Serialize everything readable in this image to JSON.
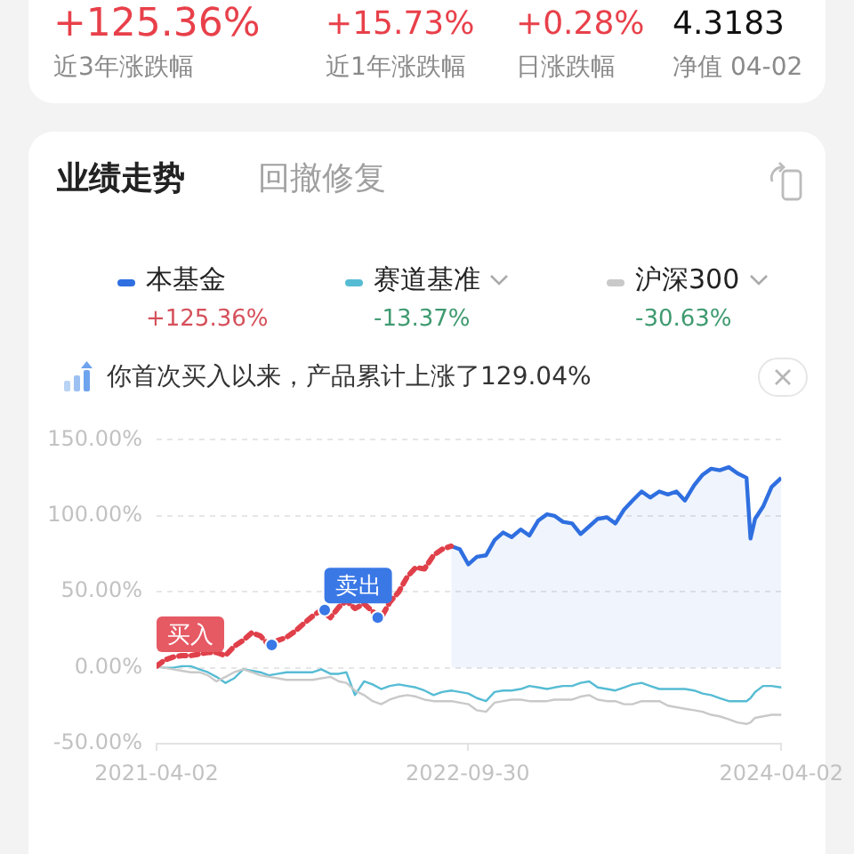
{
  "chart_data": {
    "type": "line",
    "title": "业绩走势",
    "annotations": [
      "+125.36%",
      "近3年涨跌幅",
      "+15.73%",
      "近1年涨跌幅",
      "+0.28%",
      "日涨跌幅",
      "4.3183",
      "净值 04-02",
      "回撤修复",
      "+125.36%",
      "-13.37%",
      "-30.63%",
      "你首次买入以来，产品累计上涨了129.04%",
      {
        "text": "买入",
        "x": "2021-04-02",
        "y": 1
      },
      {
        "text": "卖出",
        "x": "2022-04-25",
        "y": 33
      }
    ],
    "x": [
      "2021-04-02",
      "2021-04-16",
      "2021-05-01",
      "2021-05-16",
      "2021-06-01",
      "2021-06-16",
      "2021-07-01",
      "2021-07-16",
      "2021-08-01",
      "2021-08-16",
      "2021-09-01",
      "2021-09-16",
      "2021-10-01",
      "2021-10-16",
      "2021-11-01",
      "2021-11-16",
      "2021-12-01",
      "2021-12-16",
      "2022-01-01",
      "2022-01-16",
      "2022-02-01",
      "2022-02-16",
      "2022-03-01",
      "2022-03-16",
      "2022-04-01",
      "2022-04-16",
      "2022-05-01",
      "2022-05-16",
      "2022-06-01",
      "2022-06-16",
      "2022-07-01",
      "2022-07-16",
      "2022-08-01",
      "2022-08-16",
      "2022-09-01",
      "2022-09-16",
      "2022-10-01",
      "2022-10-16",
      "2022-11-01",
      "2022-11-16",
      "2022-12-01",
      "2022-12-16",
      "2023-01-01",
      "2023-01-16",
      "2023-02-01",
      "2023-02-16",
      "2023-03-01",
      "2023-03-16",
      "2023-04-01",
      "2023-04-16",
      "2023-05-01",
      "2023-05-16",
      "2023-06-01",
      "2023-06-16",
      "2023-07-01",
      "2023-07-16",
      "2023-08-01",
      "2023-08-16",
      "2023-09-01",
      "2023-09-16",
      "2023-10-01",
      "2023-10-16",
      "2023-11-01",
      "2023-11-16",
      "2023-12-01",
      "2023-12-16",
      "2024-01-01",
      "2024-01-16",
      "2024-02-01",
      "2024-02-08",
      "2024-02-16",
      "2024-03-01",
      "2024-03-16",
      "2024-04-02"
    ],
    "xlim": [
      "2021-04-02",
      "2024-04-02"
    ],
    "xticks": [
      "2021-04-02",
      "2022-09-30",
      "2024-04-02"
    ],
    "ylim": [
      -50,
      150
    ],
    "yticks": [
      {
        "value": -50,
        "label": "-50.00%"
      },
      {
        "value": 0,
        "label": "0.00%"
      },
      {
        "value": 50,
        "label": "50.00%"
      },
      {
        "value": 100,
        "label": "100.00%"
      },
      {
        "value": 150,
        "label": "150.00%"
      }
    ],
    "grid": "y",
    "legend": "top",
    "series": [
      {
        "name": "本基金",
        "type": "area",
        "color": "#2f6fe0",
        "values": [
          null,
          null,
          null,
          null,
          null,
          null,
          null,
          null,
          null,
          null,
          null,
          null,
          null,
          null,
          null,
          null,
          null,
          null,
          null,
          null,
          null,
          null,
          null,
          null,
          null,
          null,
          null,
          null,
          null,
          null,
          null,
          null,
          null,
          null,
          80,
          78,
          68,
          73,
          74,
          84,
          89,
          86,
          91,
          87,
          97,
          101,
          100,
          96,
          95,
          88,
          93,
          98,
          99,
          95,
          104,
          110,
          116,
          112,
          116,
          114,
          116,
          110,
          120,
          127,
          131,
          130,
          132,
          128,
          125,
          85,
          98,
          106,
          119,
          125
        ]
      },
      {
        "name": "赛道基准",
        "color": "#56bcd4",
        "values": [
          1,
          0,
          0,
          1,
          1,
          -1,
          -3,
          -6,
          -10,
          -7,
          -1,
          -2,
          -3,
          -5,
          -4,
          -3,
          -3,
          -3,
          -3,
          -1,
          -4,
          -4,
          -3,
          -18,
          -9,
          -11,
          -14,
          -12,
          -11,
          -12,
          -13,
          -15,
          -18,
          -16,
          -15,
          -16,
          -17,
          -20,
          -22,
          -16,
          -15,
          -15,
          -14,
          -12,
          -13,
          -14,
          -13,
          -12,
          -12,
          -10,
          -9,
          -13,
          -14,
          -15,
          -13,
          -11,
          -10,
          -12,
          -14,
          -14,
          -14,
          -14,
          -15,
          -17,
          -18,
          -20,
          -22,
          -22,
          -22,
          -20,
          -16,
          -12,
          -12,
          -13
        ]
      },
      {
        "name": "沪深300",
        "color": "#c9c9c9",
        "values": [
          1,
          0,
          -1,
          -2,
          -3,
          -3,
          -5,
          -9,
          -6,
          -3,
          -1,
          -3,
          -5,
          -6,
          -7,
          -8,
          -8,
          -8,
          -8,
          -7,
          -6,
          -9,
          -10,
          -15,
          -18,
          -22,
          -24,
          -21,
          -19,
          -18,
          -19,
          -21,
          -22,
          -22,
          -22,
          -23,
          -24,
          -28,
          -29,
          -23,
          -22,
          -21,
          -21,
          -22,
          -22,
          -22,
          -21,
          -21,
          -21,
          -19,
          -18,
          -21,
          -22,
          -22,
          -24,
          -24,
          -22,
          -22,
          -22,
          -25,
          -26,
          -27,
          -28,
          -29,
          -31,
          -32,
          -34,
          -36,
          -37,
          -36,
          -33,
          -32,
          -31,
          -31
        ]
      },
      {
        "type": "line",
        "color": "#e0404a",
        "line_style": "dashed",
        "values": [
          1,
          5,
          7,
          8,
          8,
          9,
          10,
          10,
          8,
          14,
          18,
          23,
          21,
          15,
          18,
          20,
          24,
          29,
          34,
          38,
          33,
          40,
          44,
          39,
          42,
          37,
          33,
          43,
          50,
          60,
          66,
          65,
          74,
          78,
          80,
          null,
          null,
          null,
          null,
          null,
          null,
          null,
          null,
          null,
          null,
          null,
          null,
          null,
          null,
          null,
          null,
          null,
          null,
          null,
          null,
          null,
          null,
          null,
          null,
          null,
          null,
          null,
          null,
          null,
          null,
          null,
          null,
          null,
          null,
          null,
          null,
          null,
          null,
          null
        ]
      },
      {
        "type": "scatter",
        "color": "#3a78e6",
        "x": [
          "2021-10-21",
          "2022-01-22",
          "2022-04-25"
        ],
        "values": [
          15,
          38,
          33
        ]
      }
    ]
  }
}
